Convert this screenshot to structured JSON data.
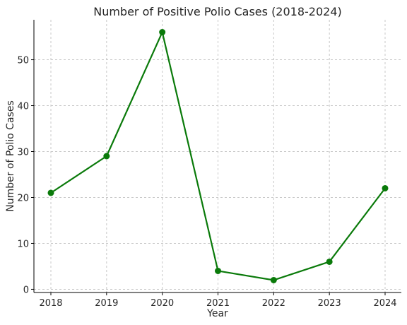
{
  "chart_data": {
    "type": "line",
    "title": "Number of Positive Polio Cases (2018-2024)",
    "xlabel": "Year",
    "ylabel": "Number of Polio Cases",
    "x": [
      "2018",
      "2019",
      "2020",
      "2021",
      "2022",
      "2023",
      "2024"
    ],
    "series": [
      {
        "values": [
          21,
          29,
          56,
          4,
          2,
          6,
          22
        ]
      }
    ],
    "yticks": [
      "0",
      "10",
      "20",
      "30",
      "40",
      "50"
    ],
    "ylim": [
      -0.7,
      58.7
    ],
    "grid": true,
    "line_color": "#0a7a0a"
  }
}
